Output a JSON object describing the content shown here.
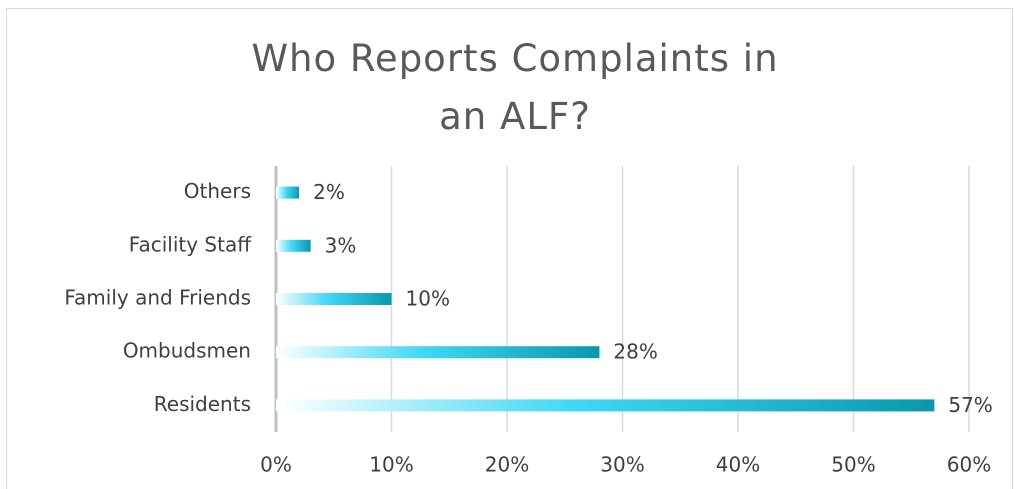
{
  "chart_data": {
    "type": "bar",
    "orientation": "horizontal",
    "title": "Who Reports Complaints in an ALF?",
    "categories": [
      "Residents",
      "Ombudsmen",
      "Family and Friends",
      "Facility Staff",
      "Others"
    ],
    "values": [
      57,
      28,
      10,
      3,
      2
    ],
    "value_labels": [
      "57%",
      "28%",
      "10%",
      "3%",
      "2%"
    ],
    "colors": [
      "#ffffff",
      "#40d8f5",
      "#0a97ad"
    ],
    "xlim": [
      0,
      60
    ],
    "xticks": [
      {
        "value": 0,
        "label": "0%"
      },
      {
        "value": 10,
        "label": "10%"
      },
      {
        "value": 20,
        "label": "20%"
      },
      {
        "value": 30,
        "label": "30%"
      },
      {
        "value": 40,
        "label": "40%"
      },
      {
        "value": 50,
        "label": "50%"
      },
      {
        "value": 60,
        "label": "60%"
      }
    ],
    "grid": true
  }
}
